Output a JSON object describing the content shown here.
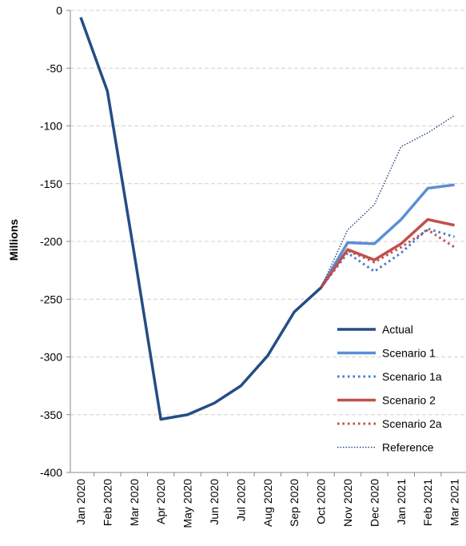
{
  "chart_data": {
    "type": "line",
    "y_label": "Millions",
    "categories": [
      "Jan 2020",
      "Feb 2020",
      "Mar 2020",
      "Apr 2020",
      "May 2020",
      "Jun 2020",
      "Jul 2020",
      "Aug 2020",
      "Sep 2020",
      "Oct 2020",
      "Nov 2020",
      "Dec 2020",
      "Jan 2021",
      "Feb 2021",
      "Mar 2021"
    ],
    "series": [
      {
        "name": "Actual",
        "color": "#254d84",
        "line_style": "solid",
        "line_width": 3.5,
        "values": [
          -6,
          -70,
          -210,
          -354,
          -350,
          -340,
          -325,
          -299,
          -261,
          -240,
          null,
          null,
          null,
          null,
          null
        ]
      },
      {
        "name": "Scenario 1",
        "color": "#5b8ed6",
        "line_style": "solid",
        "line_width": 3.5,
        "values": [
          null,
          null,
          null,
          null,
          null,
          null,
          null,
          null,
          null,
          -240,
          -201,
          -202,
          -181,
          -154,
          -151
        ]
      },
      {
        "name": "Scenario 1a",
        "color": "#4a7cc7",
        "line_style": "dotted",
        "line_width": 3,
        "values": [
          null,
          null,
          null,
          null,
          null,
          null,
          null,
          null,
          null,
          -240,
          -210,
          -226,
          -210,
          -189,
          -196
        ]
      },
      {
        "name": "Scenario 2",
        "color": "#c0504d",
        "line_style": "solid",
        "line_width": 3.5,
        "values": [
          null,
          null,
          null,
          null,
          null,
          null,
          null,
          null,
          null,
          -240,
          -207,
          -216,
          -202,
          -181,
          -186
        ]
      },
      {
        "name": "Scenario 2a",
        "color": "#c0504d",
        "line_style": "dotted",
        "line_width": 3,
        "values": [
          null,
          null,
          null,
          null,
          null,
          null,
          null,
          null,
          null,
          -240,
          -208,
          -218,
          -205,
          -190,
          -205
        ]
      },
      {
        "name": "Reference",
        "color": "#254d84",
        "line_style": "dotted",
        "line_width": 1.5,
        "values": [
          null,
          null,
          null,
          null,
          null,
          null,
          null,
          null,
          null,
          -240,
          -190,
          -168,
          -118,
          -106,
          -91
        ]
      }
    ],
    "ylim": [
      -400,
      0
    ],
    "yticks": [
      0,
      -50,
      -100,
      -150,
      -200,
      -250,
      -300,
      -350,
      -400
    ],
    "grid": true,
    "legend": "lower right"
  }
}
